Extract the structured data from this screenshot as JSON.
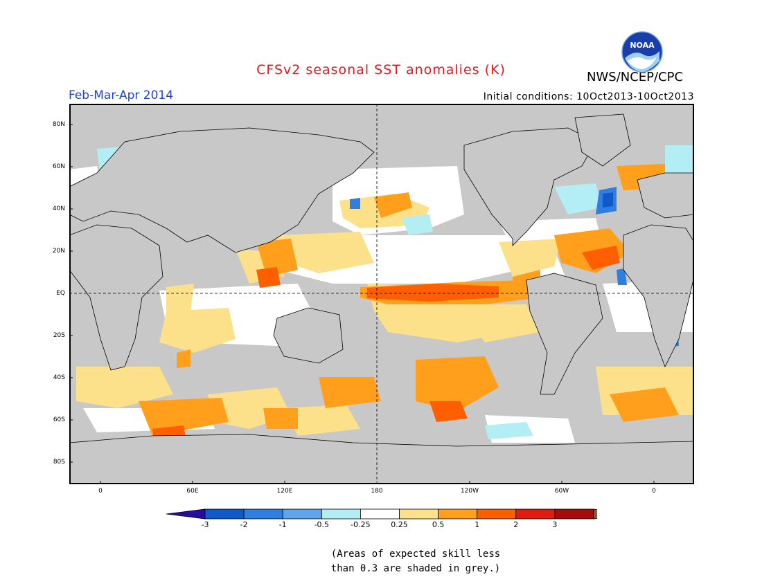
{
  "header": {
    "title": "CFSv2 seasonal SST anomalies (K)",
    "period": "Feb-Mar-Apr 2014",
    "initial_conditions": "Initial conditions: 10Oct2013-10Oct2013",
    "agency": "NWS/NCEP/CPC",
    "logo_text": "NOAA"
  },
  "map": {
    "lat_labels": [
      "80N",
      "60N",
      "40N",
      "20N",
      "EQ",
      "20S",
      "40S",
      "60S",
      "80S"
    ],
    "lon_labels": [
      "0",
      "60E",
      "120E",
      "180",
      "120W",
      "60W",
      "0"
    ]
  },
  "legend": {
    "tick_labels": [
      "-3",
      "-2",
      "-1",
      "-0.5",
      "-0.25",
      "0.25",
      "0.5",
      "1",
      "2",
      "3"
    ],
    "colors": [
      "#2a0c9c",
      "#0f59c9",
      "#2f7fe0",
      "#5fa5ea",
      "#b4eef5",
      "#ffffff",
      "#fde08a",
      "#ff9f1c",
      "#ff5f00",
      "#e01c10",
      "#a50d0d",
      "#8a5a44"
    ]
  },
  "note": {
    "line1": "(Areas of expected skill less",
    "line2": "than 0.3 are shaded in grey.)"
  },
  "colors": {
    "grey_mask": "#c8c8c8",
    "title": "#e8151b",
    "period": "#1d3fe6"
  }
}
